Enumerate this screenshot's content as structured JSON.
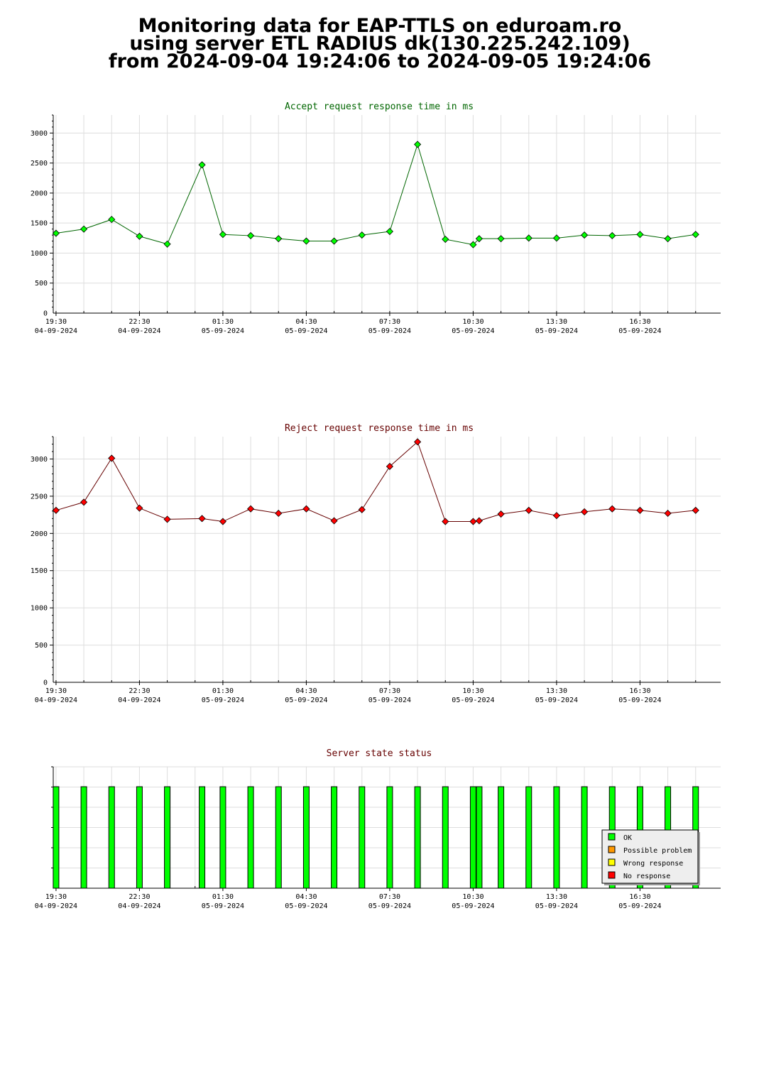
{
  "header": {
    "line1": "Monitoring data for EAP-TTLS on eduroam.ro",
    "line2": "using server ETL RADIUS dk(130.225.242.109)",
    "line3": "from 2024-09-04 19:24:06 to 2024-09-05 19:24:06"
  },
  "colors": {
    "accept_title": "#006600",
    "reject_title": "#660000",
    "status_title": "#660000",
    "accept_marker": "#00ff00",
    "reject_marker": "#ff0000",
    "grid": "#dddddd"
  },
  "chart_data": [
    {
      "type": "line",
      "title": "Accept request response time in ms",
      "ylim": [
        0,
        3300
      ],
      "yticks": [
        "0",
        "500",
        "1000",
        "1500",
        "2000",
        "2500",
        "3000"
      ],
      "xlim": [
        "2024-09-04 19:24",
        "2024-09-05 19:24"
      ],
      "xticks": [
        {
          "time": "19:30",
          "date": "04-09-2024"
        },
        {
          "time": "22:30",
          "date": "04-09-2024"
        },
        {
          "time": "01:30",
          "date": "05-09-2024"
        },
        {
          "time": "04:30",
          "date": "05-09-2024"
        },
        {
          "time": "07:30",
          "date": "05-09-2024"
        },
        {
          "time": "10:30",
          "date": "05-09-2024"
        },
        {
          "time": "13:30",
          "date": "05-09-2024"
        },
        {
          "time": "16:30",
          "date": "05-09-2024"
        }
      ],
      "grid": true,
      "x": [
        "2024-09-04 19:30",
        "2024-09-04 20:30",
        "2024-09-04 21:30",
        "2024-09-04 22:30",
        "2024-09-04 23:30",
        "2024-09-05 00:45",
        "2024-09-05 01:30",
        "2024-09-05 02:30",
        "2024-09-05 03:30",
        "2024-09-05 04:30",
        "2024-09-05 05:30",
        "2024-09-05 06:30",
        "2024-09-05 07:30",
        "2024-09-05 08:30",
        "2024-09-05 09:30",
        "2024-09-05 10:30",
        "2024-09-05 10:43",
        "2024-09-05 11:30",
        "2024-09-05 12:30",
        "2024-09-05 13:30",
        "2024-09-05 14:30",
        "2024-09-05 15:30",
        "2024-09-05 16:30",
        "2024-09-05 17:30",
        "2024-09-05 18:30"
      ],
      "y": [
        1330,
        1400,
        1560,
        1280,
        1150,
        2470,
        1310,
        1290,
        1240,
        1200,
        1200,
        1300,
        1360,
        2810,
        1230,
        1140,
        1240,
        1240,
        1250,
        1250,
        1300,
        1290,
        1310,
        1240,
        1310
      ]
    },
    {
      "type": "line",
      "title": "Reject request response time in ms",
      "ylim": [
        0,
        3300
      ],
      "yticks": [
        "0",
        "500",
        "1000",
        "1500",
        "2000",
        "2500",
        "3000"
      ],
      "xlim": [
        "2024-09-04 19:24",
        "2024-09-05 19:24"
      ],
      "xticks": [
        {
          "time": "19:30",
          "date": "04-09-2024"
        },
        {
          "time": "22:30",
          "date": "04-09-2024"
        },
        {
          "time": "01:30",
          "date": "05-09-2024"
        },
        {
          "time": "04:30",
          "date": "05-09-2024"
        },
        {
          "time": "07:30",
          "date": "05-09-2024"
        },
        {
          "time": "10:30",
          "date": "05-09-2024"
        },
        {
          "time": "13:30",
          "date": "05-09-2024"
        },
        {
          "time": "16:30",
          "date": "05-09-2024"
        }
      ],
      "grid": true,
      "x": [
        "2024-09-04 19:30",
        "2024-09-04 20:30",
        "2024-09-04 21:30",
        "2024-09-04 22:30",
        "2024-09-04 23:30",
        "2024-09-05 00:45",
        "2024-09-05 01:30",
        "2024-09-05 02:30",
        "2024-09-05 03:30",
        "2024-09-05 04:30",
        "2024-09-05 05:30",
        "2024-09-05 06:30",
        "2024-09-05 07:30",
        "2024-09-05 08:30",
        "2024-09-05 09:30",
        "2024-09-05 10:30",
        "2024-09-05 10:43",
        "2024-09-05 11:30",
        "2024-09-05 12:30",
        "2024-09-05 13:30",
        "2024-09-05 14:30",
        "2024-09-05 15:30",
        "2024-09-05 16:30",
        "2024-09-05 17:30",
        "2024-09-05 18:30"
      ],
      "y": [
        2310,
        2420,
        3010,
        2340,
        2190,
        2200,
        2160,
        2330,
        2270,
        2330,
        2170,
        2320,
        2900,
        3230,
        2160,
        2160,
        2170,
        2260,
        2310,
        2240,
        2290,
        2330,
        2310,
        2270,
        2310
      ]
    },
    {
      "type": "bar",
      "title": "Server state status",
      "xlim": [
        "2024-09-04 19:24",
        "2024-09-05 19:24"
      ],
      "xticks": [
        {
          "time": "19:30",
          "date": "04-09-2024"
        },
        {
          "time": "22:30",
          "date": "04-09-2024"
        },
        {
          "time": "01:30",
          "date": "05-09-2024"
        },
        {
          "time": "04:30",
          "date": "05-09-2024"
        },
        {
          "time": "07:30",
          "date": "05-09-2024"
        },
        {
          "time": "10:30",
          "date": "05-09-2024"
        },
        {
          "time": "13:30",
          "date": "05-09-2024"
        },
        {
          "time": "16:30",
          "date": "05-09-2024"
        }
      ],
      "grid": true,
      "x": [
        "2024-09-04 19:30",
        "2024-09-04 20:30",
        "2024-09-04 21:30",
        "2024-09-04 22:30",
        "2024-09-04 23:30",
        "2024-09-05 00:45",
        "2024-09-05 01:30",
        "2024-09-05 02:30",
        "2024-09-05 03:30",
        "2024-09-05 04:30",
        "2024-09-05 05:30",
        "2024-09-05 06:30",
        "2024-09-05 07:30",
        "2024-09-05 08:30",
        "2024-09-05 09:30",
        "2024-09-05 10:30",
        "2024-09-05 10:43",
        "2024-09-05 11:30",
        "2024-09-05 12:30",
        "2024-09-05 13:30",
        "2024-09-05 14:30",
        "2024-09-05 15:30",
        "2024-09-05 16:30",
        "2024-09-05 17:30",
        "2024-09-05 18:30"
      ],
      "status": [
        "OK",
        "OK",
        "OK",
        "OK",
        "OK",
        "OK",
        "OK",
        "OK",
        "OK",
        "OK",
        "OK",
        "OK",
        "OK",
        "OK",
        "OK",
        "OK",
        "OK",
        "OK",
        "OK",
        "OK",
        "OK",
        "OK",
        "OK",
        "OK",
        "OK"
      ],
      "legend": {
        "placement": "bottom-right",
        "entries": [
          {
            "label": "OK",
            "color": "#00ff00"
          },
          {
            "label": "Possible problem",
            "color": "#ff9900"
          },
          {
            "label": "Wrong response",
            "color": "#ffff00"
          },
          {
            "label": "No response",
            "color": "#ff0000"
          }
        ]
      }
    }
  ]
}
